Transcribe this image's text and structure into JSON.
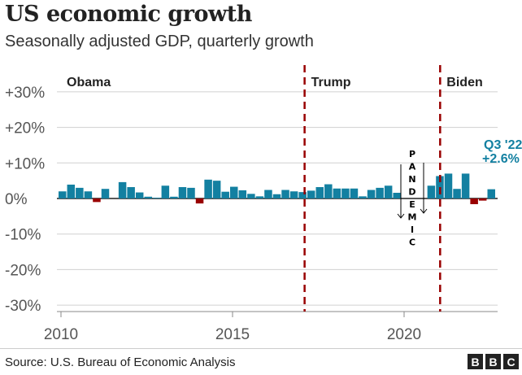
{
  "chart_data": {
    "type": "bar",
    "title": "US economic growth",
    "subtitle": "Seasonally adjusted GDP, quarterly growth",
    "ylim": [
      -32,
      34
    ],
    "yticks": [
      30,
      20,
      10,
      0,
      -10,
      -20,
      -30
    ],
    "ytick_labels": [
      "+30%",
      "+20%",
      "+10%",
      "0%",
      "-10%",
      "-20%",
      "-30%"
    ],
    "xticks": [
      2010,
      2015,
      2020
    ],
    "xtick_labels": [
      "2010",
      "2015",
      "2020"
    ],
    "x_start": "2010 Q1",
    "grid": true,
    "values": [
      2.0,
      3.9,
      3.0,
      2.0,
      -1.0,
      2.7,
      null,
      4.6,
      3.2,
      1.7,
      0.5,
      0.2,
      3.6,
      0.5,
      3.2,
      3.0,
      -1.4,
      5.3,
      5.0,
      1.9,
      3.3,
      2.3,
      1.3,
      0.6,
      2.4,
      1.2,
      2.4,
      2.0,
      1.8,
      2.2,
      3.2,
      4.0,
      2.8,
      2.8,
      2.8,
      0.6,
      2.4,
      3.0,
      3.6,
      1.6,
      null,
      null,
      null,
      3.6,
      6.3,
      7.0,
      2.7,
      7.0,
      -1.6,
      -0.6,
      2.6
    ],
    "presidencies": [
      {
        "name": "Obama",
        "start": 2010
      },
      {
        "name": "Trump",
        "start": 2017.1
      },
      {
        "name": "Biden",
        "start": 2021.05
      }
    ],
    "annotation": {
      "label_line1": "Q3 '22",
      "label_line2": "+2.6%"
    },
    "pandemic_label": "PANDEMIC",
    "colors": {
      "positive": "#1380a1",
      "negative": "#990000",
      "divider": "#990000",
      "annotation": "#1380a1"
    }
  },
  "source": "Source: U.S. Bureau of Economic Analysis",
  "logo": [
    "B",
    "B",
    "C"
  ]
}
